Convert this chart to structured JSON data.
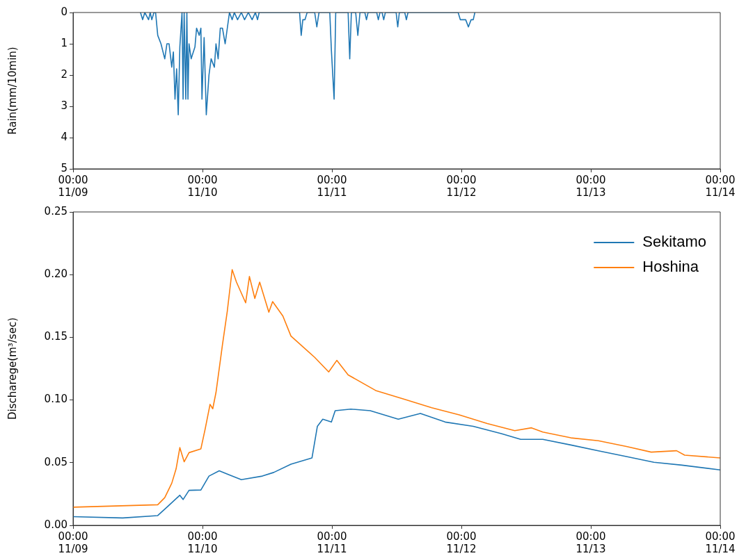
{
  "chart_data": [
    {
      "type": "line",
      "ylabel": "Rain(mm/10min)",
      "xlim": [
        "--11-09T00:00",
        "--11-14T00:00"
      ],
      "xticks": [
        {
          "value": "--11-09T00:00",
          "label": "00:00\n11/09"
        },
        {
          "value": "--11-10T00:00",
          "label": "00:00\n11/10"
        },
        {
          "value": "--11-11T00:00",
          "label": "00:00\n11/11"
        },
        {
          "value": "--11-12T00:00",
          "label": "00:00\n11/12"
        },
        {
          "value": "--11-13T00:00",
          "label": "00:00\n11/13"
        },
        {
          "value": "--11-14T00:00",
          "label": "00:00\n11/14"
        }
      ],
      "ylim": [
        5,
        0
      ],
      "yticks": [
        0,
        1,
        2,
        3,
        4,
        5
      ],
      "grid": false,
      "series": [
        {
          "color": "#1f77b4",
          "x": [
            "--11-09T12:30",
            "--11-09T12:54",
            "--11-09T13:18",
            "--11-09T14:00",
            "--11-09T14:18",
            "--11-09T14:36",
            "--11-09T15:00",
            "--11-09T15:18",
            "--11-09T15:42",
            "--11-09T16:18",
            "--11-09T17:00",
            "--11-09T17:24",
            "--11-09T17:48",
            "--11-09T18:18",
            "--11-09T18:36",
            "--11-09T18:54",
            "--11-09T19:12",
            "--11-09T19:30",
            "--11-09T19:48",
            "--11-09T20:12",
            "--11-09T20:24",
            "--11-09T20:36",
            "--11-09T20:54",
            "--11-09T21:06",
            "--11-09T21:18",
            "--11-09T21:30",
            "--11-09T21:54",
            "--11-09T22:36",
            "--11-09T22:54",
            "--11-09T23:24",
            "--11-09T23:42",
            "--11-09T23:54",
            "--11-10T00:18",
            "--11-10T00:42",
            "--11-10T01:12",
            "--11-10T01:36",
            "--11-10T02:12",
            "--11-10T02:30",
            "--11-10T02:54",
            "--11-10T03:18",
            "--11-10T03:42",
            "--11-10T04:12",
            "--11-10T04:36",
            "--11-10T05:00",
            "--11-10T05:30",
            "--11-10T05:54",
            "--11-10T06:30",
            "--11-10T07:12",
            "--11-10T07:48",
            "--11-10T08:30",
            "--11-10T09:12",
            "--11-10T09:48",
            "--11-10T10:12",
            "--11-10T10:30",
            "--11-10T18:00",
            "--11-10T18:18",
            "--11-10T18:36",
            "--11-10T19:00",
            "--11-10T19:24",
            "--11-10T20:48",
            "--11-10T21:12",
            "--11-10T21:36",
            "--11-10T23:36",
            "--11-10T23:54",
            "--11-11T00:24",
            "--11-11T00:42",
            "--11-11T03:00",
            "--11-11T03:18",
            "--11-11T03:36",
            "--11-11T04:24",
            "--11-11T04:48",
            "--11-11T05:12",
            "--11-11T06:06",
            "--11-11T06:24",
            "--11-11T06:42",
            "--11-11T08:18",
            "--11-11T08:36",
            "--11-11T08:54",
            "--11-11T09:18",
            "--11-11T09:36",
            "--11-11T09:54",
            "--11-11T11:54",
            "--11-11T12:12",
            "--11-11T12:30",
            "--11-11T13:30",
            "--11-11T13:48",
            "--11-11T14:06",
            "--11-11T23:24",
            "--11-11T23:48",
            "--11-12T00:48",
            "--11-12T01:18",
            "--11-12T01:48",
            "--11-12T02:12",
            "--11-12T02:30"
          ],
          "values": [
            0,
            0.23,
            0,
            0.23,
            0,
            0.23,
            0,
            0,
            0.73,
            1.0,
            1.48,
            1.0,
            1.0,
            1.75,
            1.26,
            2.77,
            1.8,
            3.27,
            1.1,
            0,
            2.77,
            0,
            2.77,
            0,
            2.77,
            1.0,
            1.48,
            1.1,
            0.5,
            0.73,
            0.5,
            2.77,
            0.8,
            3.27,
            2.0,
            1.48,
            1.75,
            1.0,
            1.48,
            0.5,
            0.5,
            1.0,
            0.5,
            0,
            0.23,
            0,
            0.23,
            0,
            0.23,
            0,
            0.23,
            0,
            0.23,
            0,
            0,
            0.73,
            0.23,
            0.23,
            0,
            0,
            0.46,
            0,
            0,
            1.22,
            2.77,
            0,
            0,
            1.48,
            0,
            0,
            0.73,
            0,
            0,
            0.23,
            0,
            0,
            0.23,
            0,
            0,
            0.23,
            0,
            0,
            0.46,
            0,
            0,
            0.23,
            0,
            0,
            0.23,
            0.23,
            0.46,
            0.23,
            0.23,
            0
          ]
        }
      ]
    },
    {
      "type": "line",
      "ylabel": "Discharege(m³/sec)",
      "xlim": [
        "--11-09T00:00",
        "--11-14T00:00"
      ],
      "xticks": [
        {
          "value": "--11-09T00:00",
          "label": "00:00\n11/09"
        },
        {
          "value": "--11-10T00:00",
          "label": "00:00\n11/10"
        },
        {
          "value": "--11-11T00:00",
          "label": "00:00\n11/11"
        },
        {
          "value": "--11-12T00:00",
          "label": "00:00\n11/12"
        },
        {
          "value": "--11-13T00:00",
          "label": "00:00\n11/13"
        },
        {
          "value": "--11-14T00:00",
          "label": "00:00\n11/14"
        }
      ],
      "ylim": [
        0,
        0.25
      ],
      "yticks": [
        {
          "value": 0,
          "label": "0.00"
        },
        {
          "value": 0.05,
          "label": "0.05"
        },
        {
          "value": 0.1,
          "label": "0.10"
        },
        {
          "value": 0.15,
          "label": "0.15"
        },
        {
          "value": 0.2,
          "label": "0.20"
        },
        {
          "value": 0.25,
          "label": "0.25"
        }
      ],
      "grid": false,
      "legend": "top right",
      "series": [
        {
          "name": "Sekitamo",
          "color": "#1f77b4",
          "x": [
            "--11-09T00:00",
            "--11-09T09:12",
            "--11-09T15:42",
            "--11-09T17:24",
            "--11-09T19:48",
            "--11-09T20:24",
            "--11-09T21:30",
            "--11-09T23:42",
            "--11-10T01:12",
            "--11-10T03:06",
            "--11-10T05:00",
            "--11-10T07:12",
            "--11-10T11:06",
            "--11-10T13:12",
            "--11-10T16:24",
            "--11-10T20:18",
            "--11-10T21:18",
            "--11-10T22:18",
            "--11-10T23:54",
            "--11-11T00:36",
            "--11-11T03:30",
            "--11-11T07:06",
            "--11-11T12:18",
            "--11-11T16:24",
            "--11-11T21:00",
            "--11-12T02:12",
            "--11-12T07:24",
            "--11-12T11:00",
            "--11-12T15:06",
            "--11-12T20:18",
            "--11-13T01:24",
            "--11-13T06:36",
            "--11-13T11:42",
            "--11-13T16:54",
            "--11-14T00:00"
          ],
          "values": [
            0.0069,
            0.0059,
            0.0078,
            0.0145,
            0.024,
            0.0206,
            0.0279,
            0.0282,
            0.0393,
            0.0435,
            0.0402,
            0.0364,
            0.0393,
            0.0422,
            0.0488,
            0.0538,
            0.079,
            0.0847,
            0.0824,
            0.0915,
            0.0927,
            0.0915,
            0.0847,
            0.0892,
            0.0824,
            0.079,
            0.0732,
            0.0686,
            0.0686,
            0.0641,
            0.0595,
            0.0549,
            0.0503,
            0.048,
            0.0442
          ]
        },
        {
          "name": "Hoshina",
          "color": "#ff7f0e",
          "x": [
            "--11-09T00:00",
            "--11-09T15:42",
            "--11-09T17:00",
            "--11-09T18:18",
            "--11-09T19:06",
            "--11-09T19:48",
            "--11-09T20:36",
            "--11-09T21:30",
            "--11-09T23:42",
            "--11-10T00:30",
            "--11-10T01:24",
            "--11-10T01:54",
            "--11-10T02:30",
            "--11-10T03:42",
            "--11-10T04:36",
            "--11-10T05:30",
            "--11-10T06:18",
            "--11-10T08:00",
            "--11-10T08:42",
            "--11-10T09:42",
            "--11-10T10:36",
            "--11-10T12:18",
            "--11-10T13:00",
            "--11-10T14:54",
            "--11-10T16:24",
            "--11-10T20:48",
            "--11-10T23:24",
            "--11-11T00:54",
            "--11-11T03:00",
            "--11-11T08:06",
            "--11-11T13:18",
            "--11-11T18:30",
            "--11-11T23:36",
            "--11-12T04:48",
            "--11-12T09:54",
            "--11-12T13:00",
            "--11-12T15:06",
            "--11-12T20:18",
            "--11-13T01:24",
            "--11-13T06:36",
            "--11-13T11:12",
            "--11-13T15:54",
            "--11-13T17:24",
            "--11-14T00:00"
          ],
          "values": [
            0.0145,
            0.0164,
            0.0221,
            0.0336,
            0.045,
            0.062,
            0.0507,
            0.058,
            0.061,
            0.077,
            0.0965,
            0.093,
            0.106,
            0.144,
            0.171,
            0.204,
            0.194,
            0.1775,
            0.1985,
            0.181,
            0.194,
            0.17,
            0.1785,
            0.167,
            0.151,
            0.134,
            0.1224,
            0.1316,
            0.12,
            0.1076,
            0.1007,
            0.0938,
            0.0881,
            0.0812,
            0.0755,
            0.0778,
            0.0744,
            0.0698,
            0.0675,
            0.0629,
            0.0584,
            0.0595,
            0.056,
            0.0538
          ]
        }
      ]
    }
  ]
}
